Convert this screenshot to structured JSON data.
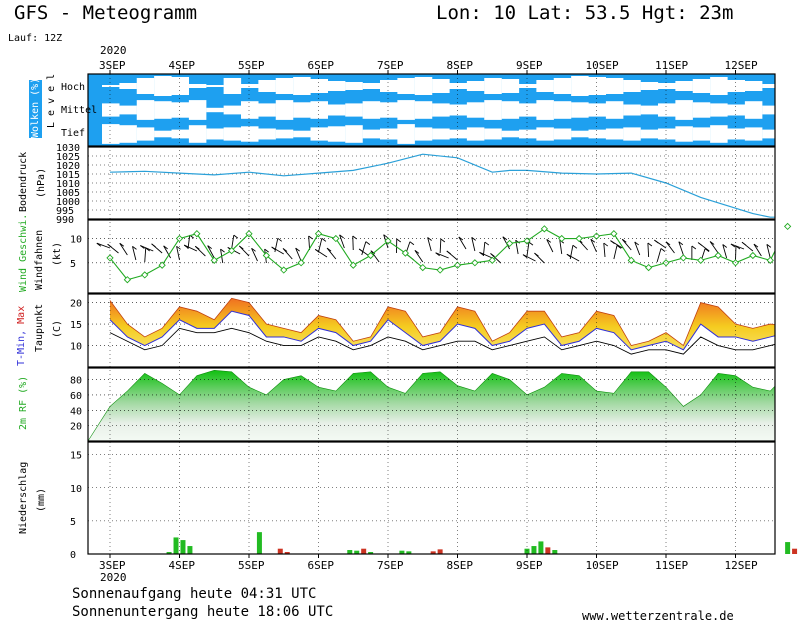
{
  "header": {
    "title": "GFS - Meteogramm",
    "coords": "Lon: 10 Lat: 53.5 Hgt: 23m",
    "run": "Lauf: 12Z"
  },
  "footer": {
    "sunrise": "Sonnenaufgang heute 04:31 UTC",
    "sunset": "Sonnenuntergang heute 18:06 UTC",
    "site": "www.wetterzentrale.de"
  },
  "colors": {
    "cloud_sky": "#1ea0f0",
    "pressure_line": "#2aa0d8",
    "wind_line": "#22aa22",
    "temp_fill_hot": "#f07020",
    "temp_fill_warm": "#f5cc20",
    "tmin": "#3030d8",
    "dewpoint": "#000000",
    "rh_fill": "#20c020",
    "precip_green": "#22bb22",
    "precip_red": "#cc3322"
  },
  "chart_data": [
    {
      "panel": "clouds",
      "type": "heatmap",
      "ylabel": "Wolken (%)",
      "ylabel2": "L e v e l",
      "levels": [
        "Hoch",
        "Mittel",
        "Tief"
      ],
      "x_day_offset": [
        0,
        0.25,
        0.5,
        0.75,
        1,
        1.25,
        1.5,
        1.75,
        2,
        2.25,
        2.5,
        2.75,
        3,
        3.25,
        3.5,
        3.75,
        4,
        4.25,
        4.5,
        4.75,
        5,
        5.25,
        5.5,
        5.75,
        6,
        6.25,
        6.5,
        6.75,
        7,
        7.25,
        7.5,
        7.75,
        8,
        8.25,
        8.5,
        8.75,
        9,
        9.25,
        9.5,
        9.75
      ],
      "high_cover": [
        0.1,
        0.3,
        0.8,
        1.0,
        0.9,
        0.2,
        0.1,
        0.8,
        0.2,
        0.6,
        0.8,
        0.9,
        0.7,
        0.5,
        0.4,
        0.3,
        0.6,
        0.8,
        0.9,
        0.7,
        0.3,
        0.5,
        0.8,
        0.7,
        0.2,
        0.6,
        0.8,
        1.0,
        0.9,
        0.8,
        0.6,
        0.4,
        0.3,
        0.5,
        0.7,
        0.9,
        0.6,
        0.5,
        0.2,
        0.4
      ],
      "mid_cover": [
        0.6,
        0.4,
        0.9,
        0.8,
        0.7,
        0.9,
        0.2,
        0.4,
        0.8,
        0.6,
        0.9,
        0.7,
        0.8,
        0.5,
        0.6,
        0.8,
        0.7,
        0.9,
        0.8,
        0.6,
        0.5,
        0.7,
        0.9,
        0.8,
        0.6,
        0.9,
        0.8,
        0.7,
        0.6,
        0.8,
        0.5,
        0.4,
        0.6,
        0.9,
        0.7,
        0.6,
        0.5,
        0.8,
        0.4,
        0.3
      ],
      "low_cover": [
        0.9,
        0.8,
        0.6,
        0.3,
        0.4,
        0.8,
        0.5,
        0.6,
        0.7,
        0.5,
        0.4,
        0.3,
        0.6,
        0.7,
        0.8,
        0.4,
        0.5,
        0.9,
        0.6,
        0.5,
        0.4,
        0.6,
        0.5,
        0.3,
        0.4,
        0.6,
        0.5,
        0.3,
        0.4,
        0.5,
        0.6,
        0.4,
        0.5,
        0.7,
        0.6,
        0.8,
        0.5,
        0.6,
        0.4,
        0.3
      ]
    },
    {
      "panel": "pressure",
      "type": "line",
      "ylabel": "Bodendruck",
      "ylabel2": "(hPa)",
      "ylim": [
        990,
        1030
      ],
      "yticks": [
        990,
        995,
        1000,
        1005,
        1010,
        1015,
        1020,
        1025,
        1030
      ],
      "x_day_offset": [
        0,
        0.5,
        1,
        1.5,
        2,
        2.5,
        3,
        3.5,
        4,
        4.5,
        5,
        5.5,
        5.75,
        6,
        6.5,
        7,
        7.5,
        8,
        8.5,
        9,
        9.25,
        9.5,
        9.75
      ],
      "values": [
        1016,
        1016.5,
        1015.5,
        1014.5,
        1016,
        1014,
        1015.5,
        1017,
        1021,
        1026,
        1024,
        1016,
        1017,
        1017,
        1015.5,
        1015,
        1015.5,
        1010,
        1002,
        996,
        993,
        991,
        991
      ]
    },
    {
      "panel": "wind",
      "type": "line",
      "ylabel": "Wind Geschwi.",
      "ylabel2": "(kt)",
      "ylabel3": "Windfahnen",
      "ylim": [
        0,
        13
      ],
      "yticks": [
        5,
        10
      ],
      "x_day_offset": [
        0,
        0.25,
        0.5,
        0.75,
        1,
        1.25,
        1.5,
        1.75,
        2,
        2.25,
        2.5,
        2.75,
        3,
        3.25,
        3.5,
        3.75,
        4,
        4.25,
        4.5,
        4.75,
        5,
        5.25,
        5.5,
        5.75,
        6,
        6.25,
        6.5,
        6.75,
        7,
        7.25,
        7.5,
        7.75,
        8,
        8.25,
        8.5,
        8.75,
        9,
        9.25,
        9.5,
        9.75
      ],
      "values": [
        6,
        1.5,
        2.5,
        4.5,
        10,
        11,
        5.5,
        7.5,
        11,
        6.5,
        3.5,
        5,
        11,
        10,
        4.5,
        6.5,
        9.5,
        7,
        4,
        3.5,
        4.5,
        5,
        5.5,
        9,
        9.5,
        12,
        10,
        10,
        10.5,
        11,
        5.5,
        4,
        5,
        6,
        5.5,
        6.5,
        5,
        6.5,
        5.5,
        12.5
      ]
    },
    {
      "panel": "temperature",
      "type": "area",
      "ylabel": "T-Min, Max",
      "ylabel2": "Taupunkt",
      "ylabel3": "(C)",
      "ylim": [
        5,
        22
      ],
      "yticks": [
        10,
        15,
        20
      ],
      "x_day_offset": [
        0,
        0.25,
        0.5,
        0.75,
        1,
        1.25,
        1.5,
        1.75,
        2,
        2.25,
        2.5,
        2.75,
        3,
        3.25,
        3.5,
        3.75,
        4,
        4.25,
        4.5,
        4.75,
        5,
        5.25,
        5.5,
        5.75,
        6,
        6.25,
        6.5,
        6.75,
        7,
        7.25,
        7.5,
        7.75,
        8,
        8.25,
        8.5,
        8.75,
        9,
        9.25,
        9.5,
        9.75
      ],
      "series": [
        {
          "name": "Max",
          "values": [
            20.5,
            15,
            12,
            14,
            19,
            18,
            16,
            21,
            20,
            15,
            14,
            13,
            17,
            16,
            11,
            12,
            19,
            18,
            12,
            13,
            19,
            18,
            11,
            13,
            18,
            18,
            12,
            13,
            18,
            17,
            10,
            11,
            13,
            10,
            20,
            19,
            15,
            14,
            15,
            14.5
          ]
        },
        {
          "name": "Min",
          "values": [
            16,
            12,
            10,
            12,
            16,
            14,
            14,
            18,
            17,
            12,
            12,
            11,
            14,
            13,
            10,
            11,
            16,
            13,
            10,
            11,
            15,
            14,
            10,
            11,
            14,
            15,
            10,
            11,
            14,
            13,
            9,
            10,
            11,
            9,
            15,
            12,
            12,
            11,
            12,
            13
          ]
        },
        {
          "name": "Taupunkt",
          "values": [
            13,
            11,
            9,
            10,
            14,
            13,
            13,
            14,
            13,
            11,
            10,
            10,
            12,
            11,
            9,
            10,
            12,
            11,
            9,
            10,
            11,
            11,
            9,
            10,
            11,
            12,
            9,
            10,
            11,
            10,
            8,
            9,
            9,
            8,
            12,
            10,
            9,
            9,
            10,
            11
          ]
        }
      ]
    },
    {
      "panel": "humidity",
      "type": "area",
      "ylabel": "2m RF (%)",
      "ylim": [
        0,
        95
      ],
      "yticks": [
        20,
        40,
        60,
        80
      ],
      "x_day_offset": [
        0,
        0.25,
        0.5,
        0.75,
        1,
        1.25,
        1.5,
        1.75,
        2,
        2.25,
        2.5,
        2.75,
        3,
        3.25,
        3.5,
        3.75,
        4,
        4.25,
        4.5,
        4.75,
        5,
        5.25,
        5.5,
        5.75,
        6,
        6.25,
        6.5,
        6.75,
        7,
        7.25,
        7.5,
        7.75,
        8,
        8.25,
        8.5,
        8.75,
        9,
        9.25,
        9.5,
        9.75
      ],
      "values": [
        45,
        65,
        88,
        75,
        60,
        85,
        92,
        90,
        70,
        60,
        80,
        85,
        70,
        65,
        88,
        90,
        70,
        62,
        88,
        90,
        72,
        65,
        88,
        80,
        60,
        70,
        88,
        85,
        65,
        62,
        90,
        90,
        70,
        45,
        60,
        88,
        85,
        70,
        65,
        88
      ]
    },
    {
      "panel": "precipitation",
      "type": "bar",
      "ylabel": "Niederschlag",
      "ylabel2": "(mm)",
      "ylim": [
        0,
        16
      ],
      "yticks": [
        0,
        5,
        10,
        15
      ],
      "x_day_offset": [
        0.85,
        0.95,
        1.05,
        1.15,
        2.15,
        2.45,
        2.55,
        3.45,
        3.55,
        3.65,
        3.75,
        4.2,
        4.3,
        4.65,
        4.75,
        6.0,
        6.1,
        6.2,
        6.3,
        6.4,
        9.75,
        9.85
      ],
      "values": [
        0.3,
        2.5,
        2.1,
        1.2,
        3.3,
        0.8,
        0.3,
        0.6,
        0.5,
        0.8,
        0.3,
        0.5,
        0.4,
        0.4,
        0.7,
        0.8,
        1.2,
        1.9,
        1.0,
        0.6,
        1.8,
        0.8
      ],
      "kinds": [
        "g",
        "g",
        "g",
        "g",
        "g",
        "r",
        "r",
        "g",
        "g",
        "r",
        "g",
        "g",
        "g",
        "r",
        "r",
        "g",
        "g",
        "g",
        "r",
        "g",
        "g",
        "r"
      ]
    }
  ],
  "time_axis": {
    "year": "2020",
    "days": [
      "3SEP",
      "4SEP",
      "5SEP",
      "6SEP",
      "7SEP",
      "8SEP",
      "9SEP",
      "10SEP",
      "11SEP",
      "12SEP"
    ]
  }
}
